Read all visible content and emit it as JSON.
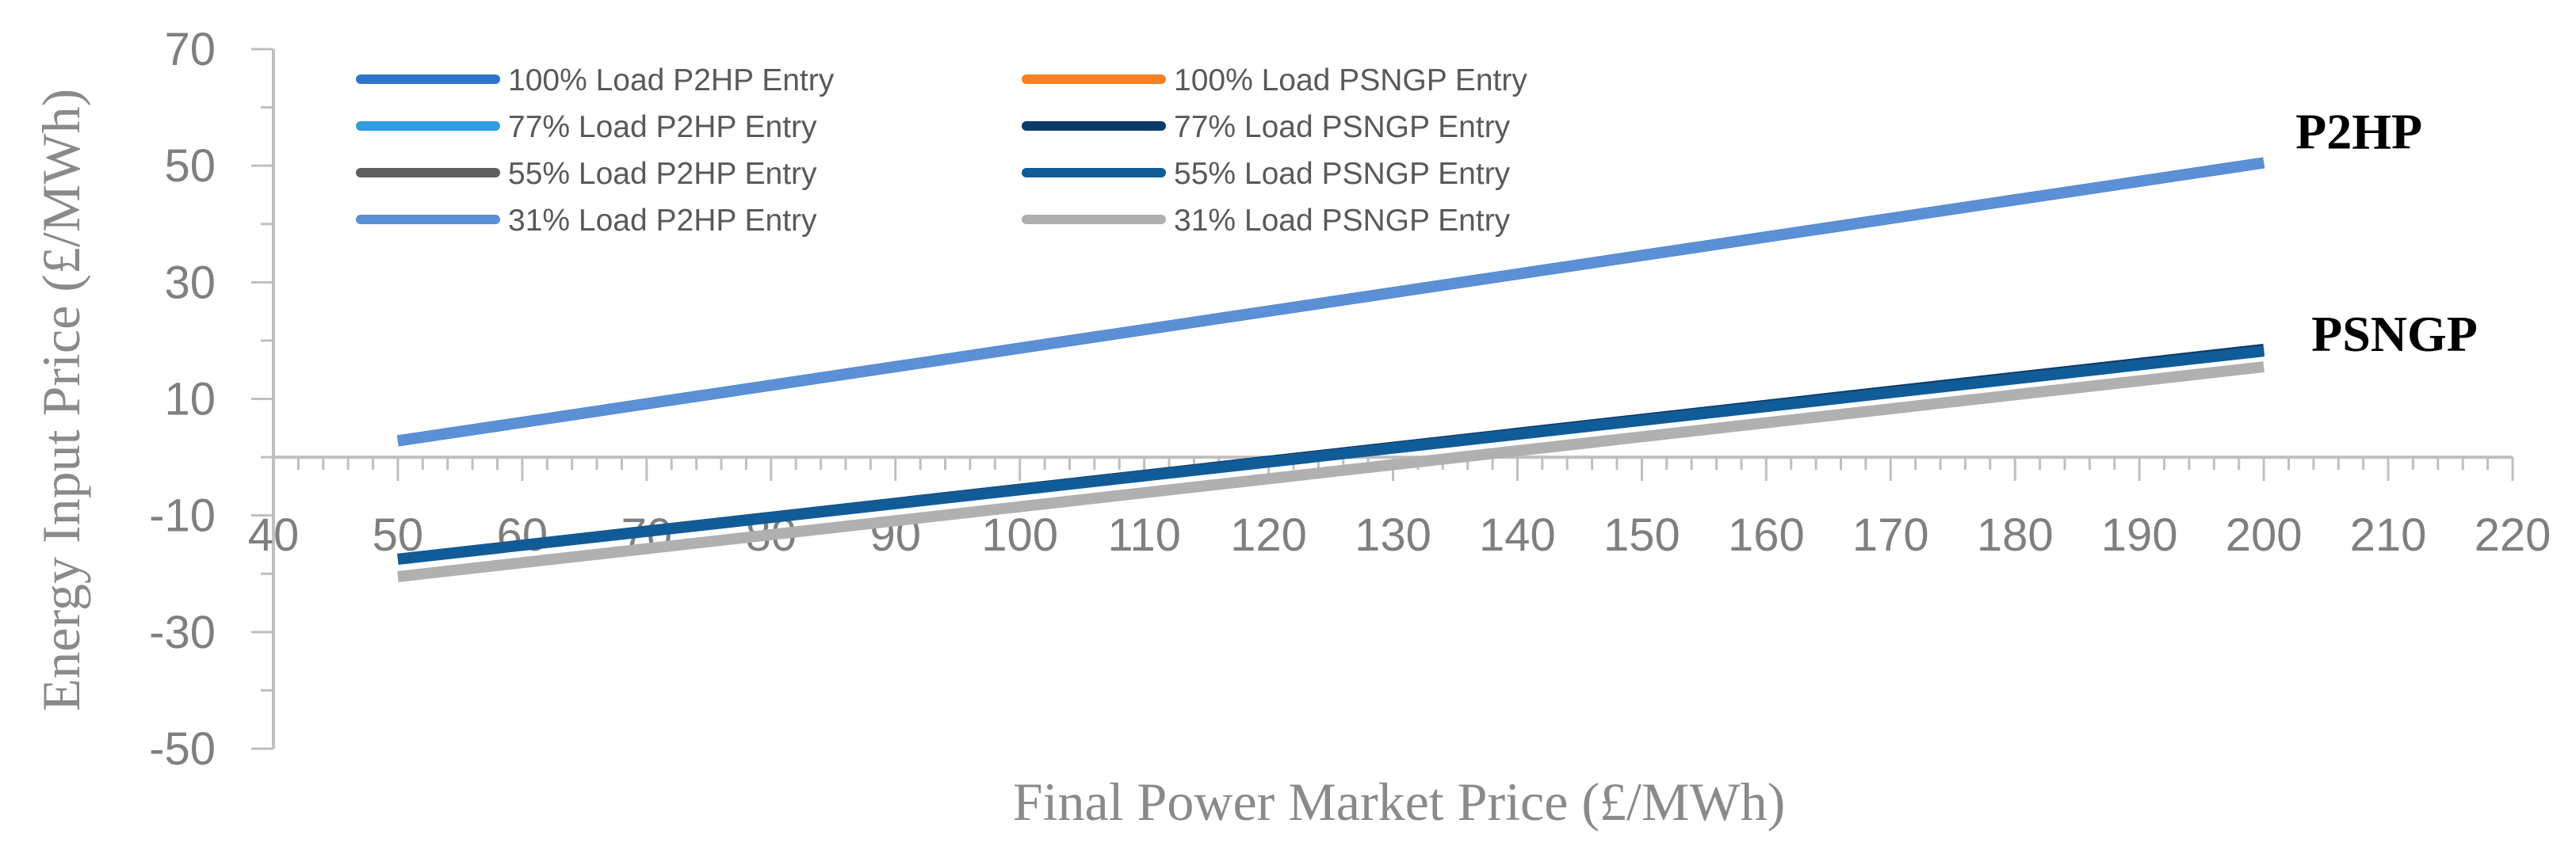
{
  "chart_data": {
    "type": "line",
    "title": "",
    "xlabel": "Final Power Market Price (£/MWh)",
    "ylabel": "Energy Input Price (£/MWh)",
    "xlim": [
      40,
      220
    ],
    "ylim": [
      -50,
      70
    ],
    "x_ticks": [
      "40",
      "50",
      "60",
      "70",
      "80",
      "90",
      "100",
      "110",
      "120",
      "130",
      "140",
      "150",
      "160",
      "170",
      "180",
      "190",
      "200",
      "210",
      "220"
    ],
    "y_ticks": [
      "70",
      "50",
      "30",
      "10",
      "-10",
      "-30",
      "-50"
    ],
    "grid": false,
    "legend_position": "top-left",
    "x": [
      50,
      200
    ],
    "series": [
      {
        "name": "100% Load P2HP Entry",
        "color": "#2e75c7",
        "values": [
          2.8,
          50.5
        ]
      },
      {
        "name": "100% Load PSNGP Entry",
        "color": "#f58025",
        "values": [
          -17.5,
          18.5
        ]
      },
      {
        "name": "77% Load P2HP Entry",
        "color": "#2f9ee0",
        "values": [
          2.8,
          50.5
        ]
      },
      {
        "name": "77% Load PSNGP Entry",
        "color": "#0b3a6b",
        "values": [
          -17.5,
          18.5
        ]
      },
      {
        "name": "55% Load P2HP Entry",
        "color": "#5f5f5f",
        "values": [
          2.8,
          50.5
        ]
      },
      {
        "name": "55% Load PSNGP Entry",
        "color": "#0f5c99",
        "values": [
          -17.5,
          18.2
        ]
      },
      {
        "name": "31% Load P2HP Entry",
        "color": "#5b8fd6",
        "values": [
          2.8,
          50.5
        ]
      },
      {
        "name": "31% Load PSNGP Entry",
        "color": "#b0b0b0",
        "values": [
          -20.5,
          15.5
        ]
      }
    ],
    "annotations": [
      {
        "text": "P2HP",
        "x": 200,
        "y": 50.5
      },
      {
        "text": "PSNGP",
        "x": 200,
        "y": 18.5
      }
    ]
  }
}
